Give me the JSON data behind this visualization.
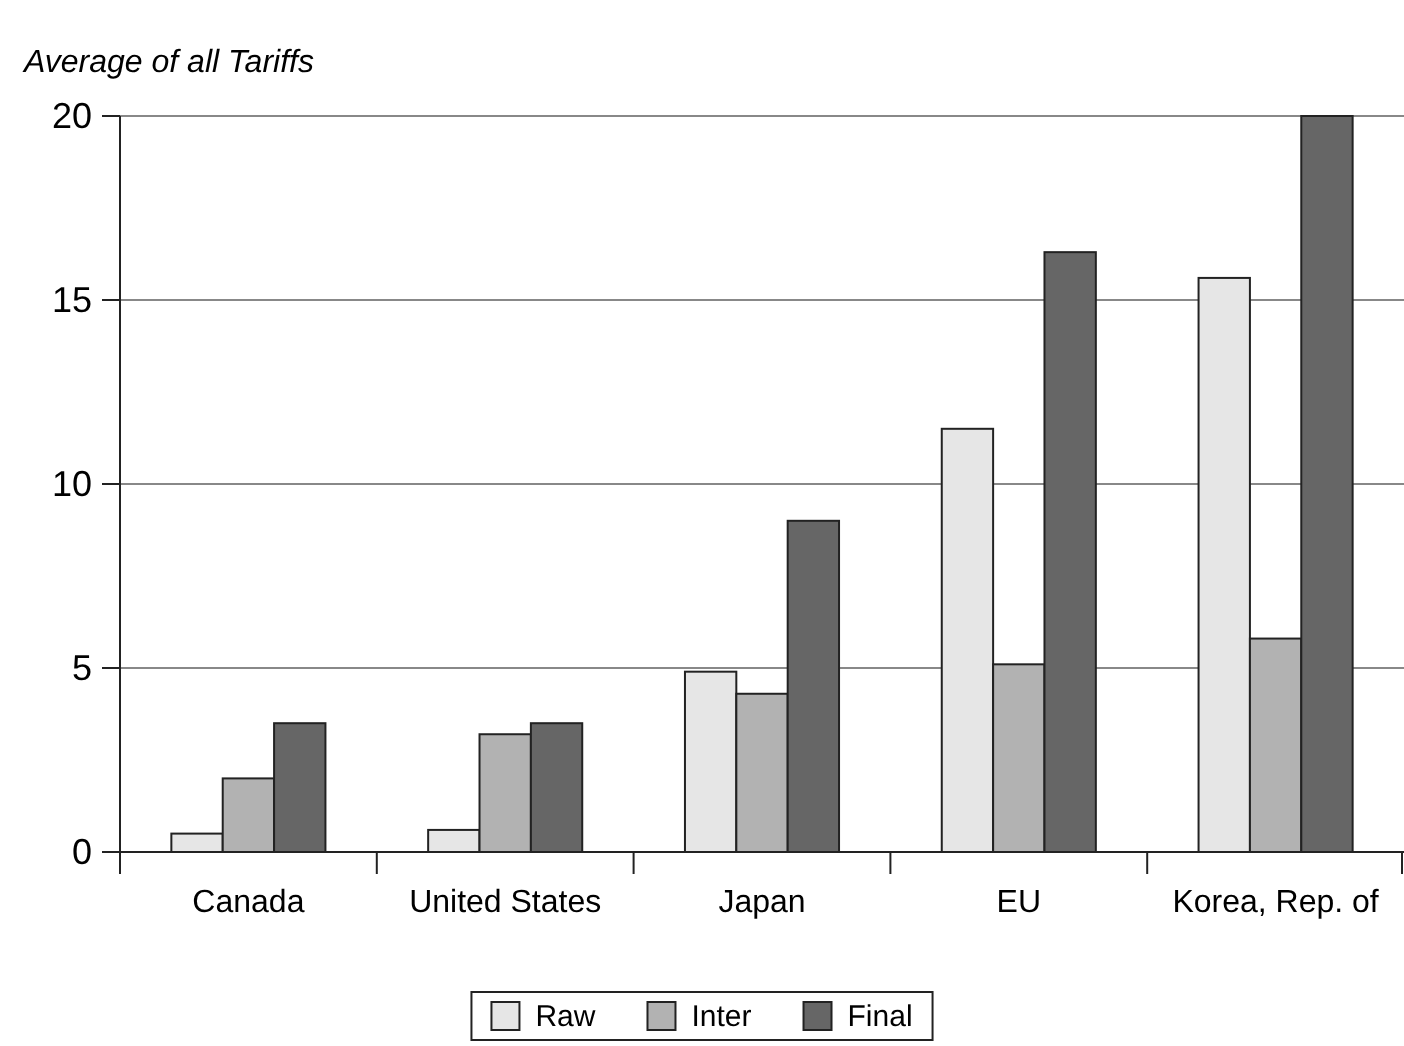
{
  "chart_data": {
    "type": "bar",
    "ylabel": "Average of all Tariffs",
    "categories": [
      "Canada",
      "United States",
      "Japan",
      "EU",
      "Korea, Rep. of"
    ],
    "series": [
      {
        "name": "Raw",
        "color": "#e6e6e6",
        "values": [
          0.5,
          0.6,
          4.9,
          11.5,
          15.6
        ]
      },
      {
        "name": "Inter",
        "color": "#b2b2b2",
        "values": [
          2.0,
          3.2,
          4.3,
          5.1,
          5.8
        ]
      },
      {
        "name": "Final",
        "color": "#666666",
        "values": [
          3.5,
          3.5,
          9.0,
          16.3,
          20.0
        ]
      }
    ],
    "ylim": [
      0,
      20
    ],
    "yticks": [
      0,
      5,
      10,
      15,
      20
    ],
    "grid": "y",
    "legend": "bottom"
  }
}
